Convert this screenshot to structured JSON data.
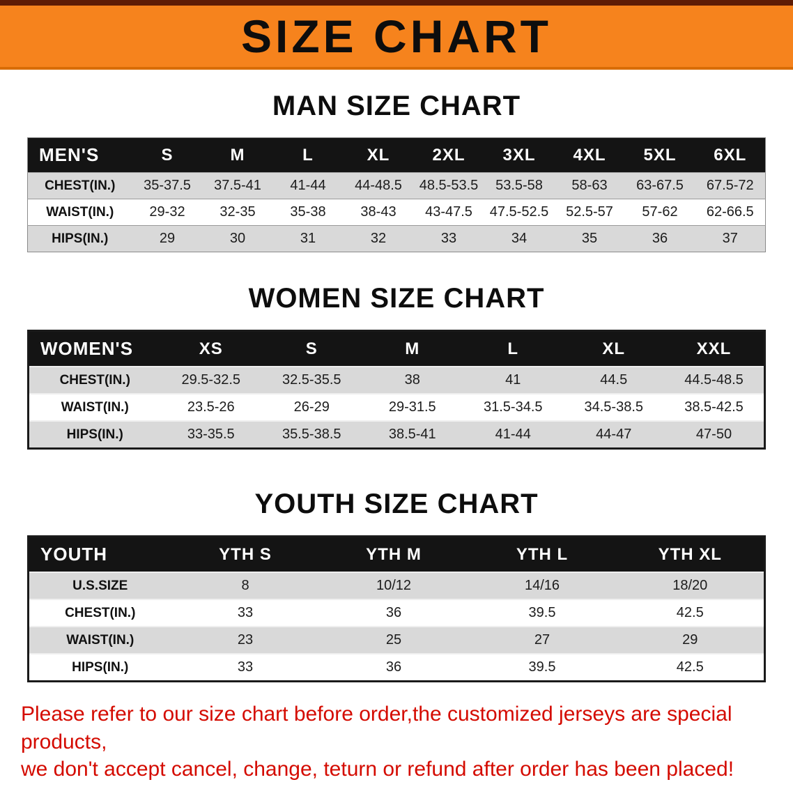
{
  "colors": {
    "banner": "#f6831d",
    "strip": "#5e1c05",
    "banner-edge": "#d96d05",
    "header-bg": "#141414",
    "row-gray": "#d9d9d9",
    "warn-red": "#d40b00"
  },
  "banner": {
    "title": "SIZE CHART"
  },
  "sections": [
    {
      "heading": "MAN SIZE CHART",
      "table": {
        "header": [
          "MEN'S",
          "S",
          "M",
          "L",
          "XL",
          "2XL",
          "3XL",
          "4XL",
          "5XL",
          "6XL"
        ],
        "rows": [
          {
            "label": "CHEST(IN.)",
            "values": [
              "35-37.5",
              "37.5-41",
              "41-44",
              "44-48.5",
              "48.5-53.5",
              "53.5-58",
              "58-63",
              "63-67.5",
              "67.5-72"
            ]
          },
          {
            "label": "WAIST(IN.)",
            "values": [
              "29-32",
              "32-35",
              "35-38",
              "38-43",
              "43-47.5",
              "47.5-52.5",
              "52.5-57",
              "57-62",
              "62-66.5"
            ]
          },
          {
            "label": "HIPS(IN.)",
            "values": [
              "29",
              "30",
              "31",
              "32",
              "33",
              "34",
              "35",
              "36",
              "37"
            ]
          }
        ]
      }
    },
    {
      "heading": "WOMEN SIZE CHART",
      "table": {
        "header": [
          "WOMEN'S",
          "XS",
          "S",
          "M",
          "L",
          "XL",
          "XXL"
        ],
        "rows": [
          {
            "label": "CHEST(IN.)",
            "values": [
              "29.5-32.5",
              "32.5-35.5",
              "38",
              "41",
              "44.5",
              "44.5-48.5"
            ]
          },
          {
            "label": "WAIST(IN.)",
            "values": [
              "23.5-26",
              "26-29",
              "29-31.5",
              "31.5-34.5",
              "34.5-38.5",
              "38.5-42.5"
            ]
          },
          {
            "label": "HIPS(IN.)",
            "values": [
              "33-35.5",
              "35.5-38.5",
              "38.5-41",
              "41-44",
              "44-47",
              "47-50"
            ]
          }
        ]
      }
    },
    {
      "heading": "YOUTH SIZE CHART",
      "table": {
        "header": [
          "YOUTH",
          "YTH S",
          "YTH M",
          "YTH L",
          "YTH XL"
        ],
        "rows": [
          {
            "label": "U.S.SIZE",
            "values": [
              "8",
              "10/12",
              "14/16",
              "18/20"
            ]
          },
          {
            "label": "CHEST(IN.)",
            "values": [
              "33",
              "36",
              "39.5",
              "42.5"
            ]
          },
          {
            "label": "WAIST(IN.)",
            "values": [
              "23",
              "25",
              "27",
              "29"
            ]
          },
          {
            "label": "HIPS(IN.)",
            "values": [
              "33",
              "36",
              "39.5",
              "42.5"
            ]
          }
        ]
      }
    }
  ],
  "disclaimer": {
    "line1": "Please refer to our size chart before order,the customized jerseys are special products,",
    "line2": "we don't accept cancel, change, teturn or refund after order has been placed!"
  }
}
